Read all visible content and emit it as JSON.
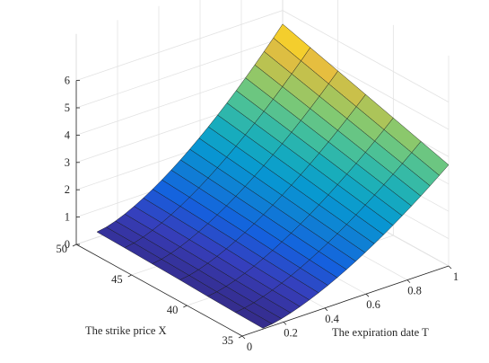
{
  "chart_data": {
    "type": "surface3d",
    "title": "",
    "xlabel": "The expiration date T",
    "ylabel": "The strike price X",
    "zlabel": "",
    "xlim": [
      0,
      1
    ],
    "ylim": [
      35,
      50
    ],
    "zlim": [
      0,
      6
    ],
    "x_ticks": [
      "0",
      "0.2",
      "0.4",
      "0.6",
      "0.8",
      "1"
    ],
    "y_ticks": [
      "35",
      "40",
      "45",
      "50"
    ],
    "z_ticks": [
      "0",
      "1",
      "2",
      "3",
      "4",
      "5",
      "6"
    ],
    "grid": true,
    "colormap": "parula",
    "T_grid": [
      0.1,
      0.145,
      0.19,
      0.235,
      0.28,
      0.325,
      0.37,
      0.415,
      0.46,
      0.505,
      0.55,
      0.595,
      0.64,
      0.685,
      0.73,
      0.775,
      0.82,
      0.865,
      0.91,
      0.955,
      1.0
    ],
    "X_grid": [
      35,
      37.5,
      40,
      42.5,
      45,
      47.5,
      50
    ],
    "Z_at_T_min": [
      0.03,
      0.05,
      0.08,
      0.12,
      0.15,
      0.18,
      0.2
    ],
    "Z_at_T_max": [
      3.7,
      4.0,
      4.3,
      4.6,
      4.9,
      5.2,
      5.5
    ]
  }
}
